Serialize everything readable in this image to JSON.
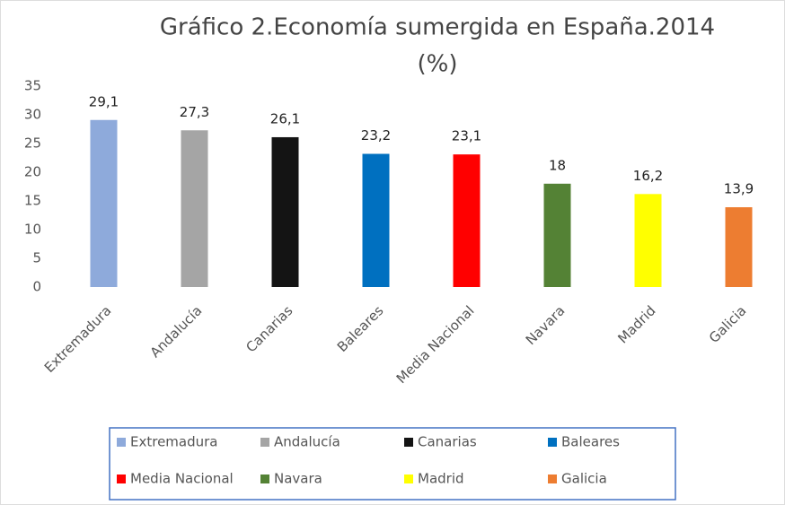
{
  "chart_data": {
    "type": "bar",
    "title": "Gráfico 2.Economía sumergida en España.2014",
    "subtitle": "(%)",
    "categories": [
      "Extremadura",
      "Andalucía",
      "Canarias",
      "Baleares",
      "Media Nacional",
      "Navara",
      "Madrid",
      "Galicia"
    ],
    "values": [
      29.1,
      27.3,
      26.1,
      23.2,
      23.1,
      18,
      16.2,
      13.9
    ],
    "value_labels": [
      "29,1",
      "27,3",
      "26,1",
      "23,2",
      "23,1",
      "18",
      "16,2",
      "13,9"
    ],
    "colors": [
      "#8eaadb",
      "#a5a5a5",
      "#141414",
      "#0070c0",
      "#ff0000",
      "#548235",
      "#ffff00",
      "#ed7d31"
    ],
    "ylim": [
      0,
      35
    ],
    "yticks": [
      0,
      5,
      10,
      15,
      20,
      25,
      30,
      35
    ],
    "grid": false,
    "legend": "bottom"
  }
}
